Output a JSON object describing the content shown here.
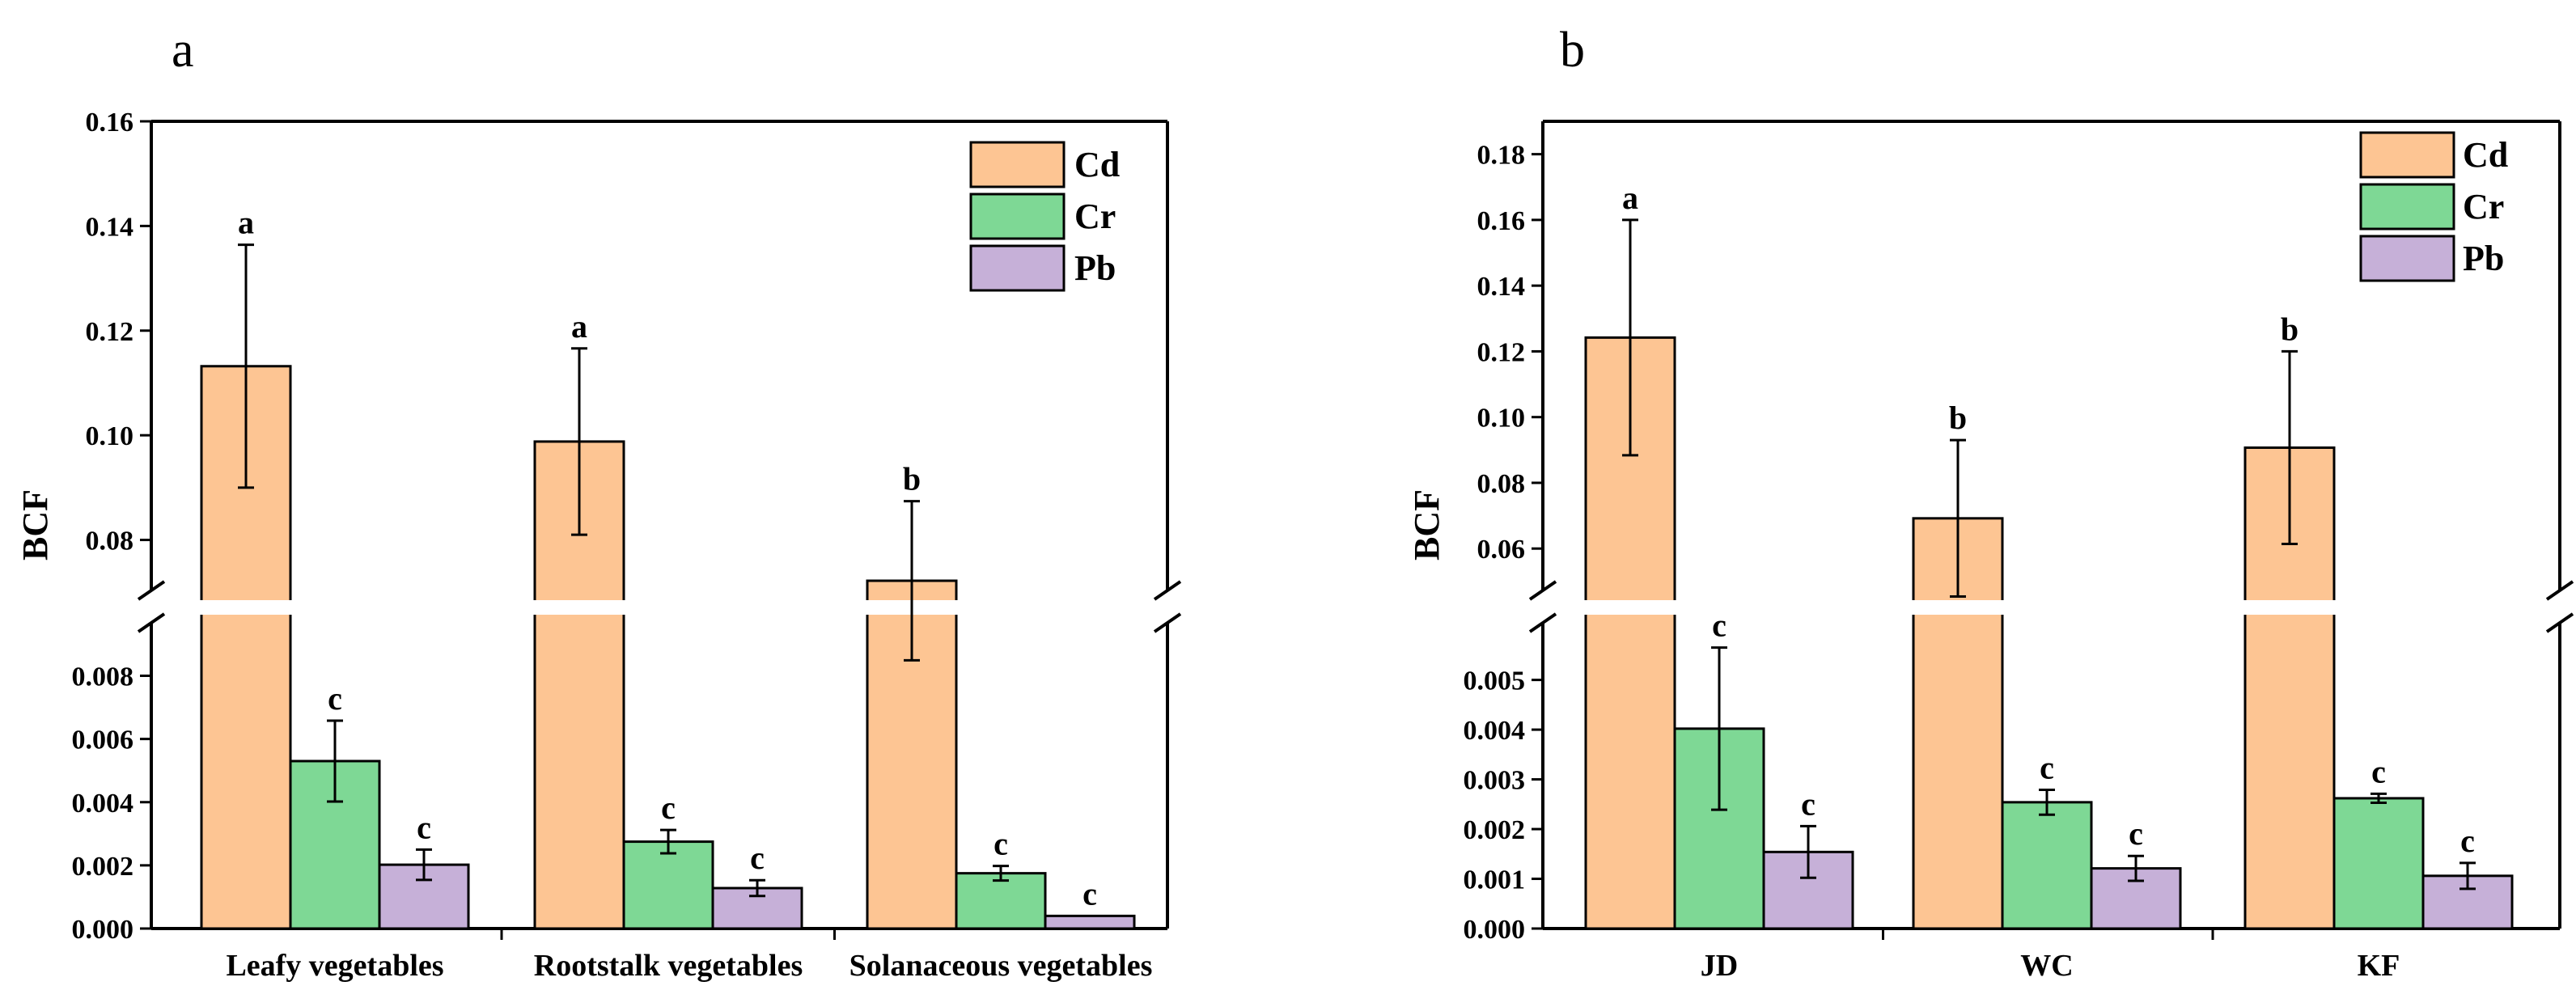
{
  "chart_data": [
    {
      "panel": "a",
      "type": "bar",
      "ylabel": "BCF",
      "categories": [
        "Leafy vegetables",
        "Rootstalk vegetables",
        "Solanaceous vegetables"
      ],
      "axis_break": true,
      "upper_axis": {
        "ylim": [
          0.0705,
          0.16
        ],
        "ticks": [
          "0.08",
          "0.10",
          "0.12",
          "0.14",
          "0.16"
        ]
      },
      "lower_axis": {
        "ylim": [
          0,
          0.0096
        ],
        "ticks": [
          "0.000",
          "0.002",
          "0.004",
          "0.006",
          "0.008"
        ]
      },
      "series": [
        {
          "name": "Cd",
          "color": "#FDC593",
          "values": [
            0.1132,
            0.0988,
            0.0722
          ],
          "errors": [
            0.0232,
            0.0178,
            0.0152
          ],
          "labels": [
            "a",
            "a",
            "b"
          ]
        },
        {
          "name": "Cr",
          "color": "#7ED895",
          "values": [
            0.0053,
            0.00275,
            0.00175
          ],
          "errors": [
            0.00128,
            0.00037,
            0.00023
          ],
          "labels": [
            "c",
            "c",
            "c"
          ]
        },
        {
          "name": "Pb",
          "color": "#C6B0D8",
          "values": [
            0.00202,
            0.00128,
            0.0004
          ],
          "errors": [
            0.00048,
            0.00025,
            0.0
          ],
          "labels": [
            "c",
            "c",
            "c"
          ]
        }
      ],
      "legend": [
        "Cd",
        "Cr",
        "Pb"
      ]
    },
    {
      "panel": "b",
      "type": "bar",
      "ylabel": "BCF",
      "categories": [
        "JD",
        "WC",
        "KF"
      ],
      "axis_break": true,
      "upper_axis": {
        "ylim": [
          0.0475,
          0.19
        ],
        "ticks": [
          "0.06",
          "0.08",
          "0.10",
          "0.12",
          "0.14",
          "0.16",
          "0.18"
        ]
      },
      "lower_axis": {
        "ylim": [
          0,
          0.0061
        ],
        "ticks": [
          "0.000",
          "0.001",
          "0.002",
          "0.003",
          "0.004",
          "0.005"
        ]
      },
      "series": [
        {
          "name": "Cd",
          "color": "#FDC593",
          "values": [
            0.1242,
            0.0692,
            0.0907
          ],
          "errors": [
            0.0358,
            0.0238,
            0.0293
          ],
          "labels": [
            "a",
            "b",
            "b"
          ]
        },
        {
          "name": "Cr",
          "color": "#7ED895",
          "values": [
            0.00402,
            0.00254,
            0.00262
          ],
          "errors": [
            0.00163,
            0.00025,
            9e-05
          ],
          "labels": [
            "c",
            "c",
            "c"
          ]
        },
        {
          "name": "Pb",
          "color": "#C6B0D8",
          "values": [
            0.00154,
            0.00121,
            0.00106
          ],
          "errors": [
            0.00052,
            0.00025,
            0.00026
          ],
          "labels": [
            "c",
            "c",
            "c"
          ]
        }
      ],
      "legend": [
        "Cd",
        "Cr",
        "Pb"
      ]
    }
  ]
}
